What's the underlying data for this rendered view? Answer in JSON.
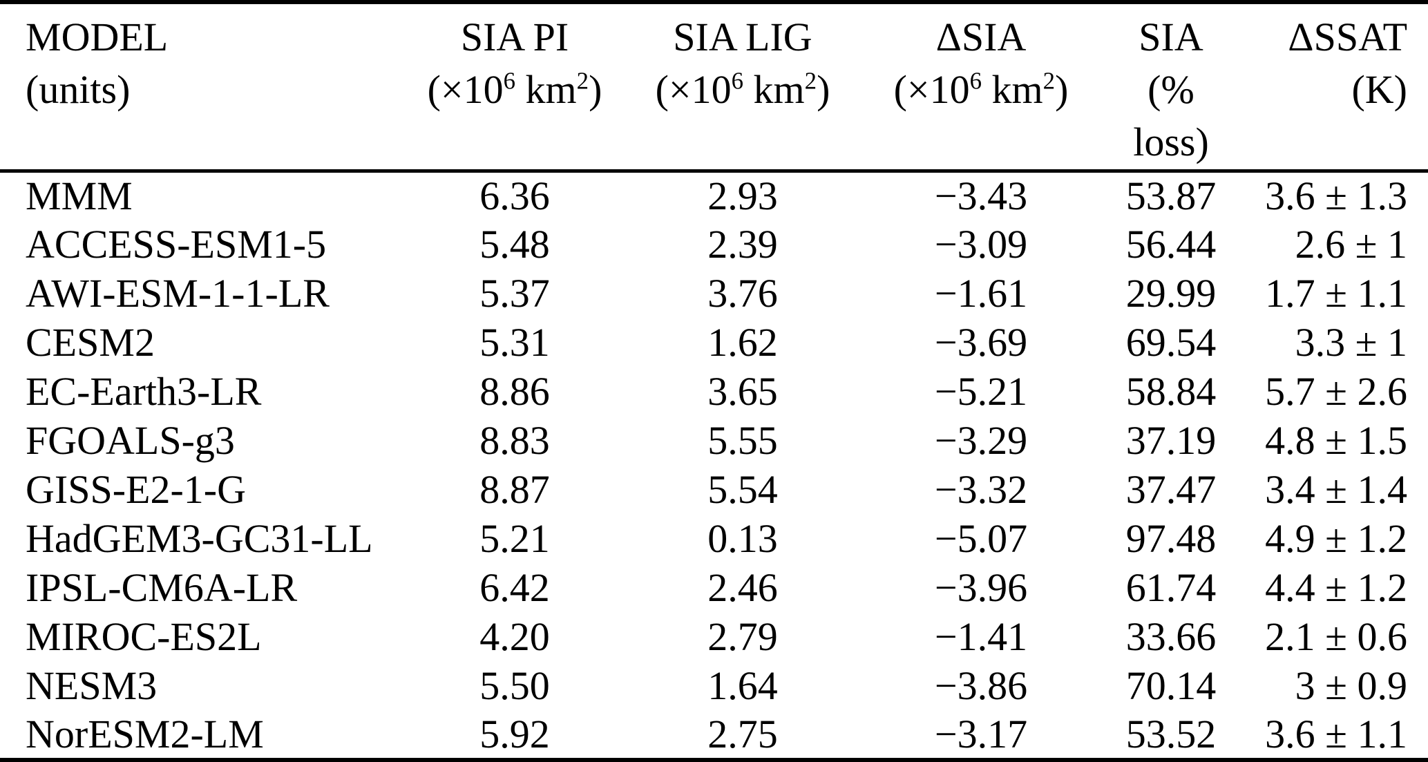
{
  "table": {
    "columns": [
      {
        "title": "MODEL",
        "units_lines": [
          [
            "(units)"
          ]
        ]
      },
      {
        "title": "SIA PI",
        "units_lines": [
          [
            "(×10",
            "6",
            " km",
            "2",
            ")"
          ]
        ]
      },
      {
        "title": "SIA LIG",
        "units_lines": [
          [
            "(×10",
            "6",
            " km",
            "2",
            ")"
          ]
        ]
      },
      {
        "title": "ΔSIA",
        "units_lines": [
          [
            "(×10",
            "6",
            " km",
            "2",
            ")"
          ]
        ]
      },
      {
        "title": "SIA",
        "units_lines": [
          [
            "(%"
          ],
          [
            "loss)"
          ]
        ]
      },
      {
        "title": "ΔSSAT",
        "units_lines": [
          [
            "(K)"
          ]
        ]
      }
    ],
    "rows": [
      [
        "MMM",
        "6.36",
        "2.93",
        "−3.43",
        "53.87",
        "3.6 ± 1.3"
      ],
      [
        "ACCESS-ESM1-5",
        "5.48",
        "2.39",
        "−3.09",
        "56.44",
        "2.6 ± 1"
      ],
      [
        "AWI-ESM-1-1-LR",
        "5.37",
        "3.76",
        "−1.61",
        "29.99",
        "1.7 ± 1.1"
      ],
      [
        "CESM2",
        "5.31",
        "1.62",
        "−3.69",
        "69.54",
        "3.3 ± 1"
      ],
      [
        "EC-Earth3-LR",
        "8.86",
        "3.65",
        "−5.21",
        "58.84",
        "5.7 ± 2.6"
      ],
      [
        "FGOALS-g3",
        "8.83",
        "5.55",
        "−3.29",
        "37.19",
        "4.8 ± 1.5"
      ],
      [
        "GISS-E2-1-G",
        "8.87",
        "5.54",
        "−3.32",
        "37.47",
        "3.4 ± 1.4"
      ],
      [
        "HadGEM3-GC31-LL",
        "5.21",
        "0.13",
        "−5.07",
        "97.48",
        "4.9 ± 1.2"
      ],
      [
        "IPSL-CM6A-LR",
        "6.42",
        "2.46",
        "−3.96",
        "61.74",
        "4.4 ± 1.2"
      ],
      [
        "MIROC-ES2L",
        "4.20",
        "2.79",
        "−1.41",
        "33.66",
        "2.1 ± 0.6"
      ],
      [
        "NESM3",
        "5.50",
        "1.64",
        "−3.86",
        "70.14",
        "3 ± 0.9"
      ],
      [
        "NorESM2-LM",
        "5.92",
        "2.75",
        "−3.17",
        "53.52",
        "3.6 ± 1.1"
      ]
    ]
  }
}
